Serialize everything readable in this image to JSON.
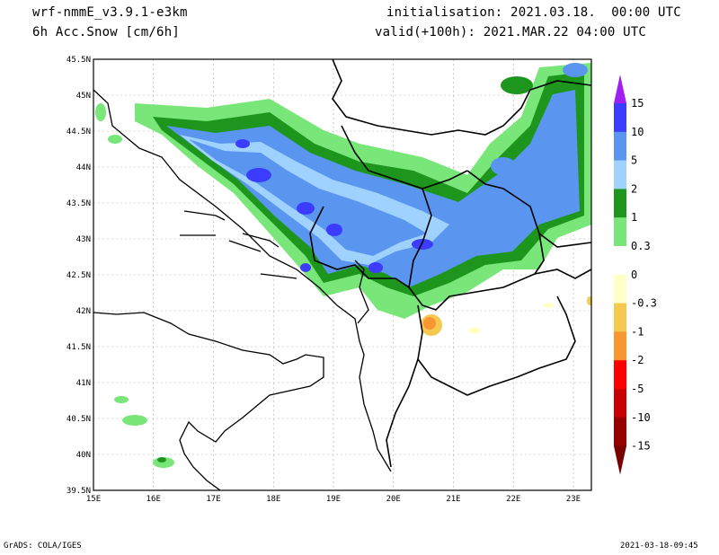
{
  "header": {
    "model": "wrf-nmmE_v3.9.1-e3km",
    "field": "6h Acc.Snow [cm/6h]",
    "init": "initialisation: 2021.03.18.  00:00 UTC",
    "valid": "valid(+100h): 2021.MAR.22 04:00 UTC"
  },
  "map": {
    "lat_labels": [
      "45.5N",
      "45N",
      "44.5N",
      "44N",
      "43.5N",
      "43N",
      "42.5N",
      "42N",
      "41.5N",
      "41N",
      "40.5N",
      "40N",
      "39.5N"
    ],
    "lon_labels": [
      "15E",
      "16E",
      "17E",
      "18E",
      "19E",
      "20E",
      "21E",
      "22E",
      "23E"
    ],
    "lat_range": [
      39.5,
      45.5
    ],
    "lon_range": [
      15,
      23.3
    ]
  },
  "colorbar": {
    "levels": [
      "15",
      "10",
      "5",
      "2",
      "1",
      "0.3",
      "0",
      "-0.3",
      "-1",
      "-2",
      "-5",
      "-10",
      "-15"
    ],
    "colors": [
      "#a020f0",
      "#3c3cff",
      "#5a96f0",
      "#a0d2ff",
      "#1e961e",
      "#78e678",
      "#ffffff",
      "#ffffc8",
      "#f5c850",
      "#fa9632",
      "#ff0000",
      "#c80000",
      "#960000",
      "#780000"
    ]
  },
  "footer": {
    "left": "GrADS: COLA/IGES",
    "right": "2021-03-18-09:45"
  }
}
